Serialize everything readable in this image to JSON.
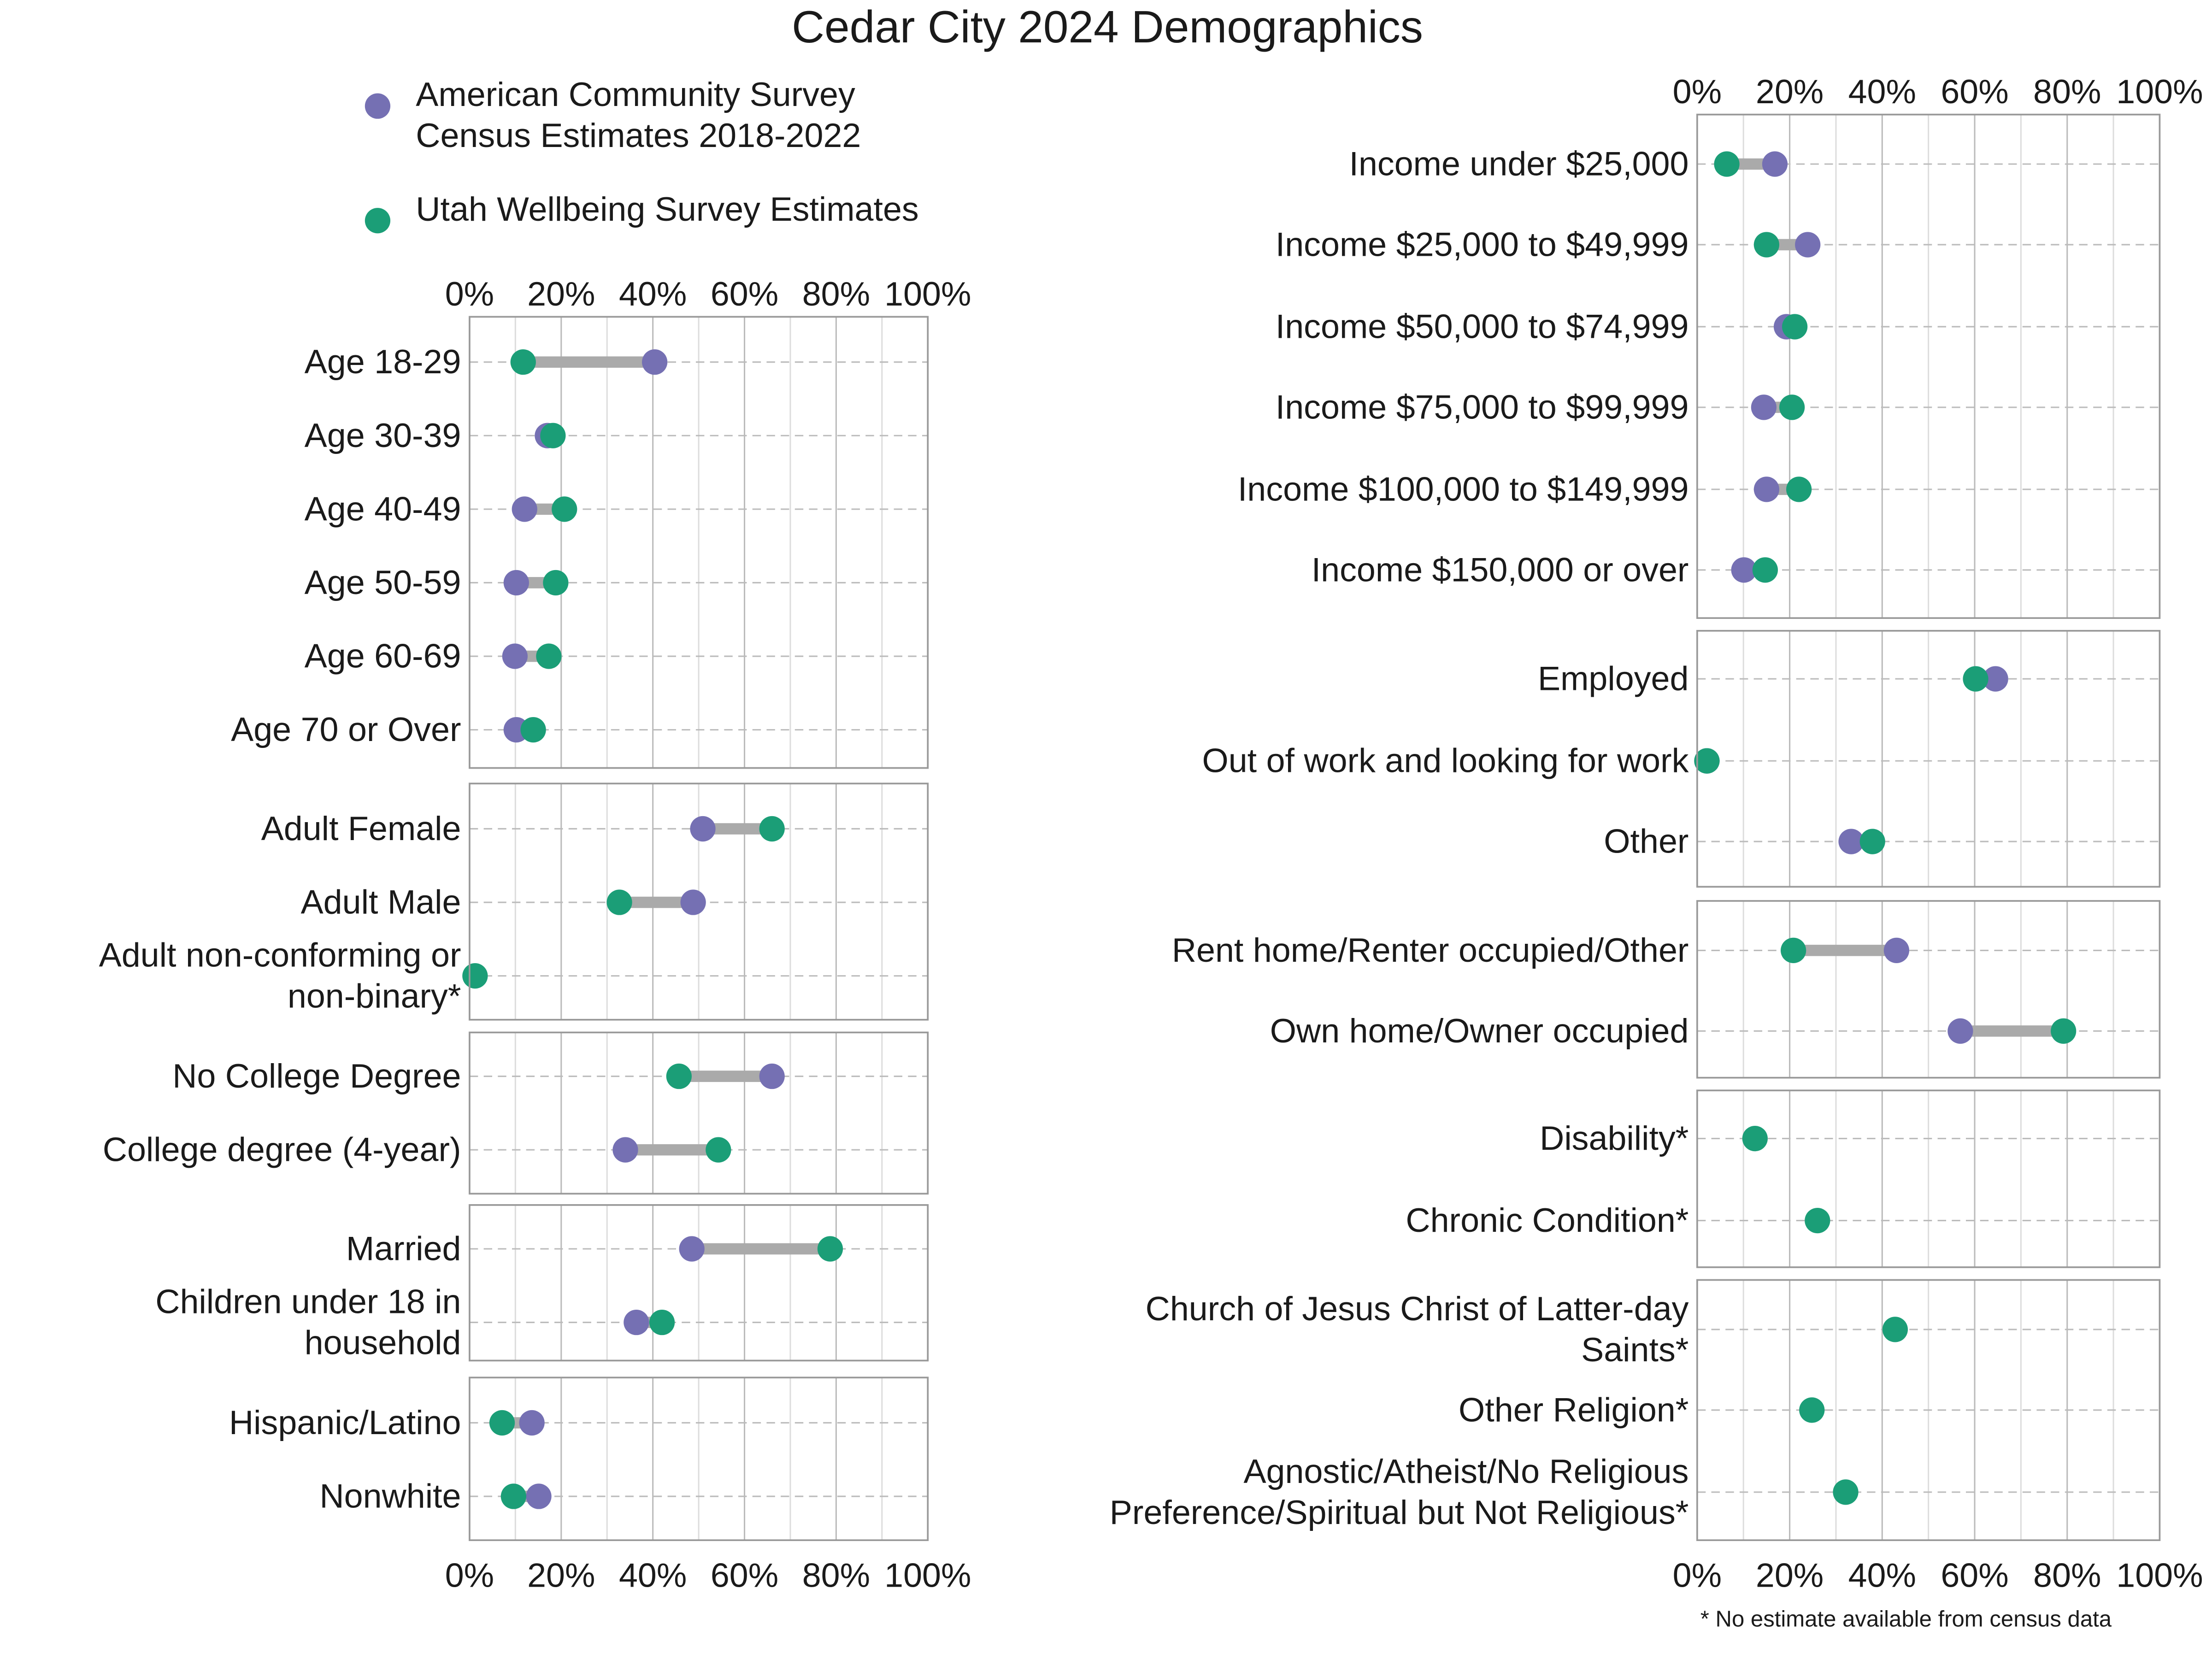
{
  "chart_data": {
    "type": "dumbbell",
    "title": "Cedar City 2024 Demographics",
    "footnote": "* No estimate available from census data",
    "xlim": [
      0,
      100
    ],
    "ticks": [
      "0%",
      "20%",
      "40%",
      "60%",
      "80%",
      "100%"
    ],
    "grid": true,
    "legend_placement": "top-left",
    "colors": {
      "census": "#7570b3",
      "wellbeing": "#1b9e77",
      "connector": "#aaaaaa"
    },
    "legend": [
      {
        "key": "census",
        "lines": [
          "American Community Survey",
          "Census Estimates 2018-2022"
        ]
      },
      {
        "key": "wellbeing",
        "lines": [
          "Utah Wellbeing Survey Estimates"
        ]
      }
    ],
    "columns": [
      {
        "panels": [
          {
            "rows": [
              {
                "label": [
                  "Age 18-29"
                ],
                "census": 40.4,
                "wellbeing": 11.7
              },
              {
                "label": [
                  "Age 30-39"
                ],
                "census": 17.0,
                "wellbeing": 18.2
              },
              {
                "label": [
                  "Age 40-49"
                ],
                "census": 12.0,
                "wellbeing": 20.7
              },
              {
                "label": [
                  "Age 50-59"
                ],
                "census": 10.2,
                "wellbeing": 18.8
              },
              {
                "label": [
                  "Age 60-69"
                ],
                "census": 9.9,
                "wellbeing": 17.3
              },
              {
                "label": [
                  "Age 70 or Over"
                ],
                "census": 10.2,
                "wellbeing": 13.9
              }
            ]
          },
          {
            "rows": [
              {
                "label": [
                  "Adult Female"
                ],
                "census": 50.9,
                "wellbeing": 66.0
              },
              {
                "label": [
                  "Adult Male"
                ],
                "census": 48.8,
                "wellbeing": 32.7
              },
              {
                "label": [
                  "Adult non-conforming or",
                  "non-binary*"
                ],
                "census": null,
                "wellbeing": 1.2
              }
            ]
          },
          {
            "rows": [
              {
                "label": [
                  "No College Degree"
                ],
                "census": 66.0,
                "wellbeing": 45.7
              },
              {
                "label": [
                  "College degree (4-year)"
                ],
                "census": 34.0,
                "wellbeing": 54.3
              }
            ]
          },
          {
            "rows": [
              {
                "label": [
                  "Married"
                ],
                "census": 48.5,
                "wellbeing": 78.7
              },
              {
                "label": [
                  "Children under 18 in",
                  "household"
                ],
                "census": 36.4,
                "wellbeing": 42.0
              }
            ]
          },
          {
            "rows": [
              {
                "label": [
                  "Hispanic/Latino"
                ],
                "census": 13.6,
                "wellbeing": 7.1
              },
              {
                "label": [
                  "Nonwhite"
                ],
                "census": 15.1,
                "wellbeing": 9.6
              }
            ]
          }
        ]
      },
      {
        "panels": [
          {
            "rows": [
              {
                "label": [
                  "Income under $25,000"
                ],
                "census": 16.8,
                "wellbeing": 6.4
              },
              {
                "label": [
                  "Income $25,000 to $49,999"
                ],
                "census": 23.9,
                "wellbeing": 15.0
              },
              {
                "label": [
                  "Income $50,000 to $74,999"
                ],
                "census": 19.3,
                "wellbeing": 21.1
              },
              {
                "label": [
                  "Income $75,000 to $99,999"
                ],
                "census": 14.4,
                "wellbeing": 20.5
              },
              {
                "label": [
                  "Income $100,000 to $149,999"
                ],
                "census": 15.0,
                "wellbeing": 22.0
              },
              {
                "label": [
                  "Income $150,000 or over"
                ],
                "census": 10.1,
                "wellbeing": 14.7
              }
            ]
          },
          {
            "rows": [
              {
                "label": [
                  "Employed"
                ],
                "census": 64.5,
                "wellbeing": 60.2
              },
              {
                "label": [
                  "Out of work and looking for work"
                ],
                "census": 2.1,
                "wellbeing": 2.1
              },
              {
                "label": [
                  "Other"
                ],
                "census": 33.3,
                "wellbeing": 37.9
              }
            ]
          },
          {
            "rows": [
              {
                "label": [
                  "Rent home/Renter occupied/Other"
                ],
                "census": 43.1,
                "wellbeing": 20.8
              },
              {
                "label": [
                  "Own home/Owner occupied"
                ],
                "census": 56.9,
                "wellbeing": 79.2
              }
            ]
          },
          {
            "rows": [
              {
                "label": [
                  "Disability*"
                ],
                "census": null,
                "wellbeing": 12.5
              },
              {
                "label": [
                  "Chronic Condition*"
                ],
                "census": null,
                "wellbeing": 26.0
              }
            ]
          },
          {
            "rows": [
              {
                "label": [
                  "Church of Jesus Christ of Latter-day",
                  "Saints*"
                ],
                "census": null,
                "wellbeing": 42.8
              },
              {
                "label": [
                  "Other Religion*"
                ],
                "census": null,
                "wellbeing": 24.8
              },
              {
                "label": [
                  "Agnostic/Atheist/No Religious",
                  "Preference/Spiritual but Not Religious*"
                ],
                "census": null,
                "wellbeing": 32.1
              }
            ]
          }
        ]
      }
    ]
  }
}
